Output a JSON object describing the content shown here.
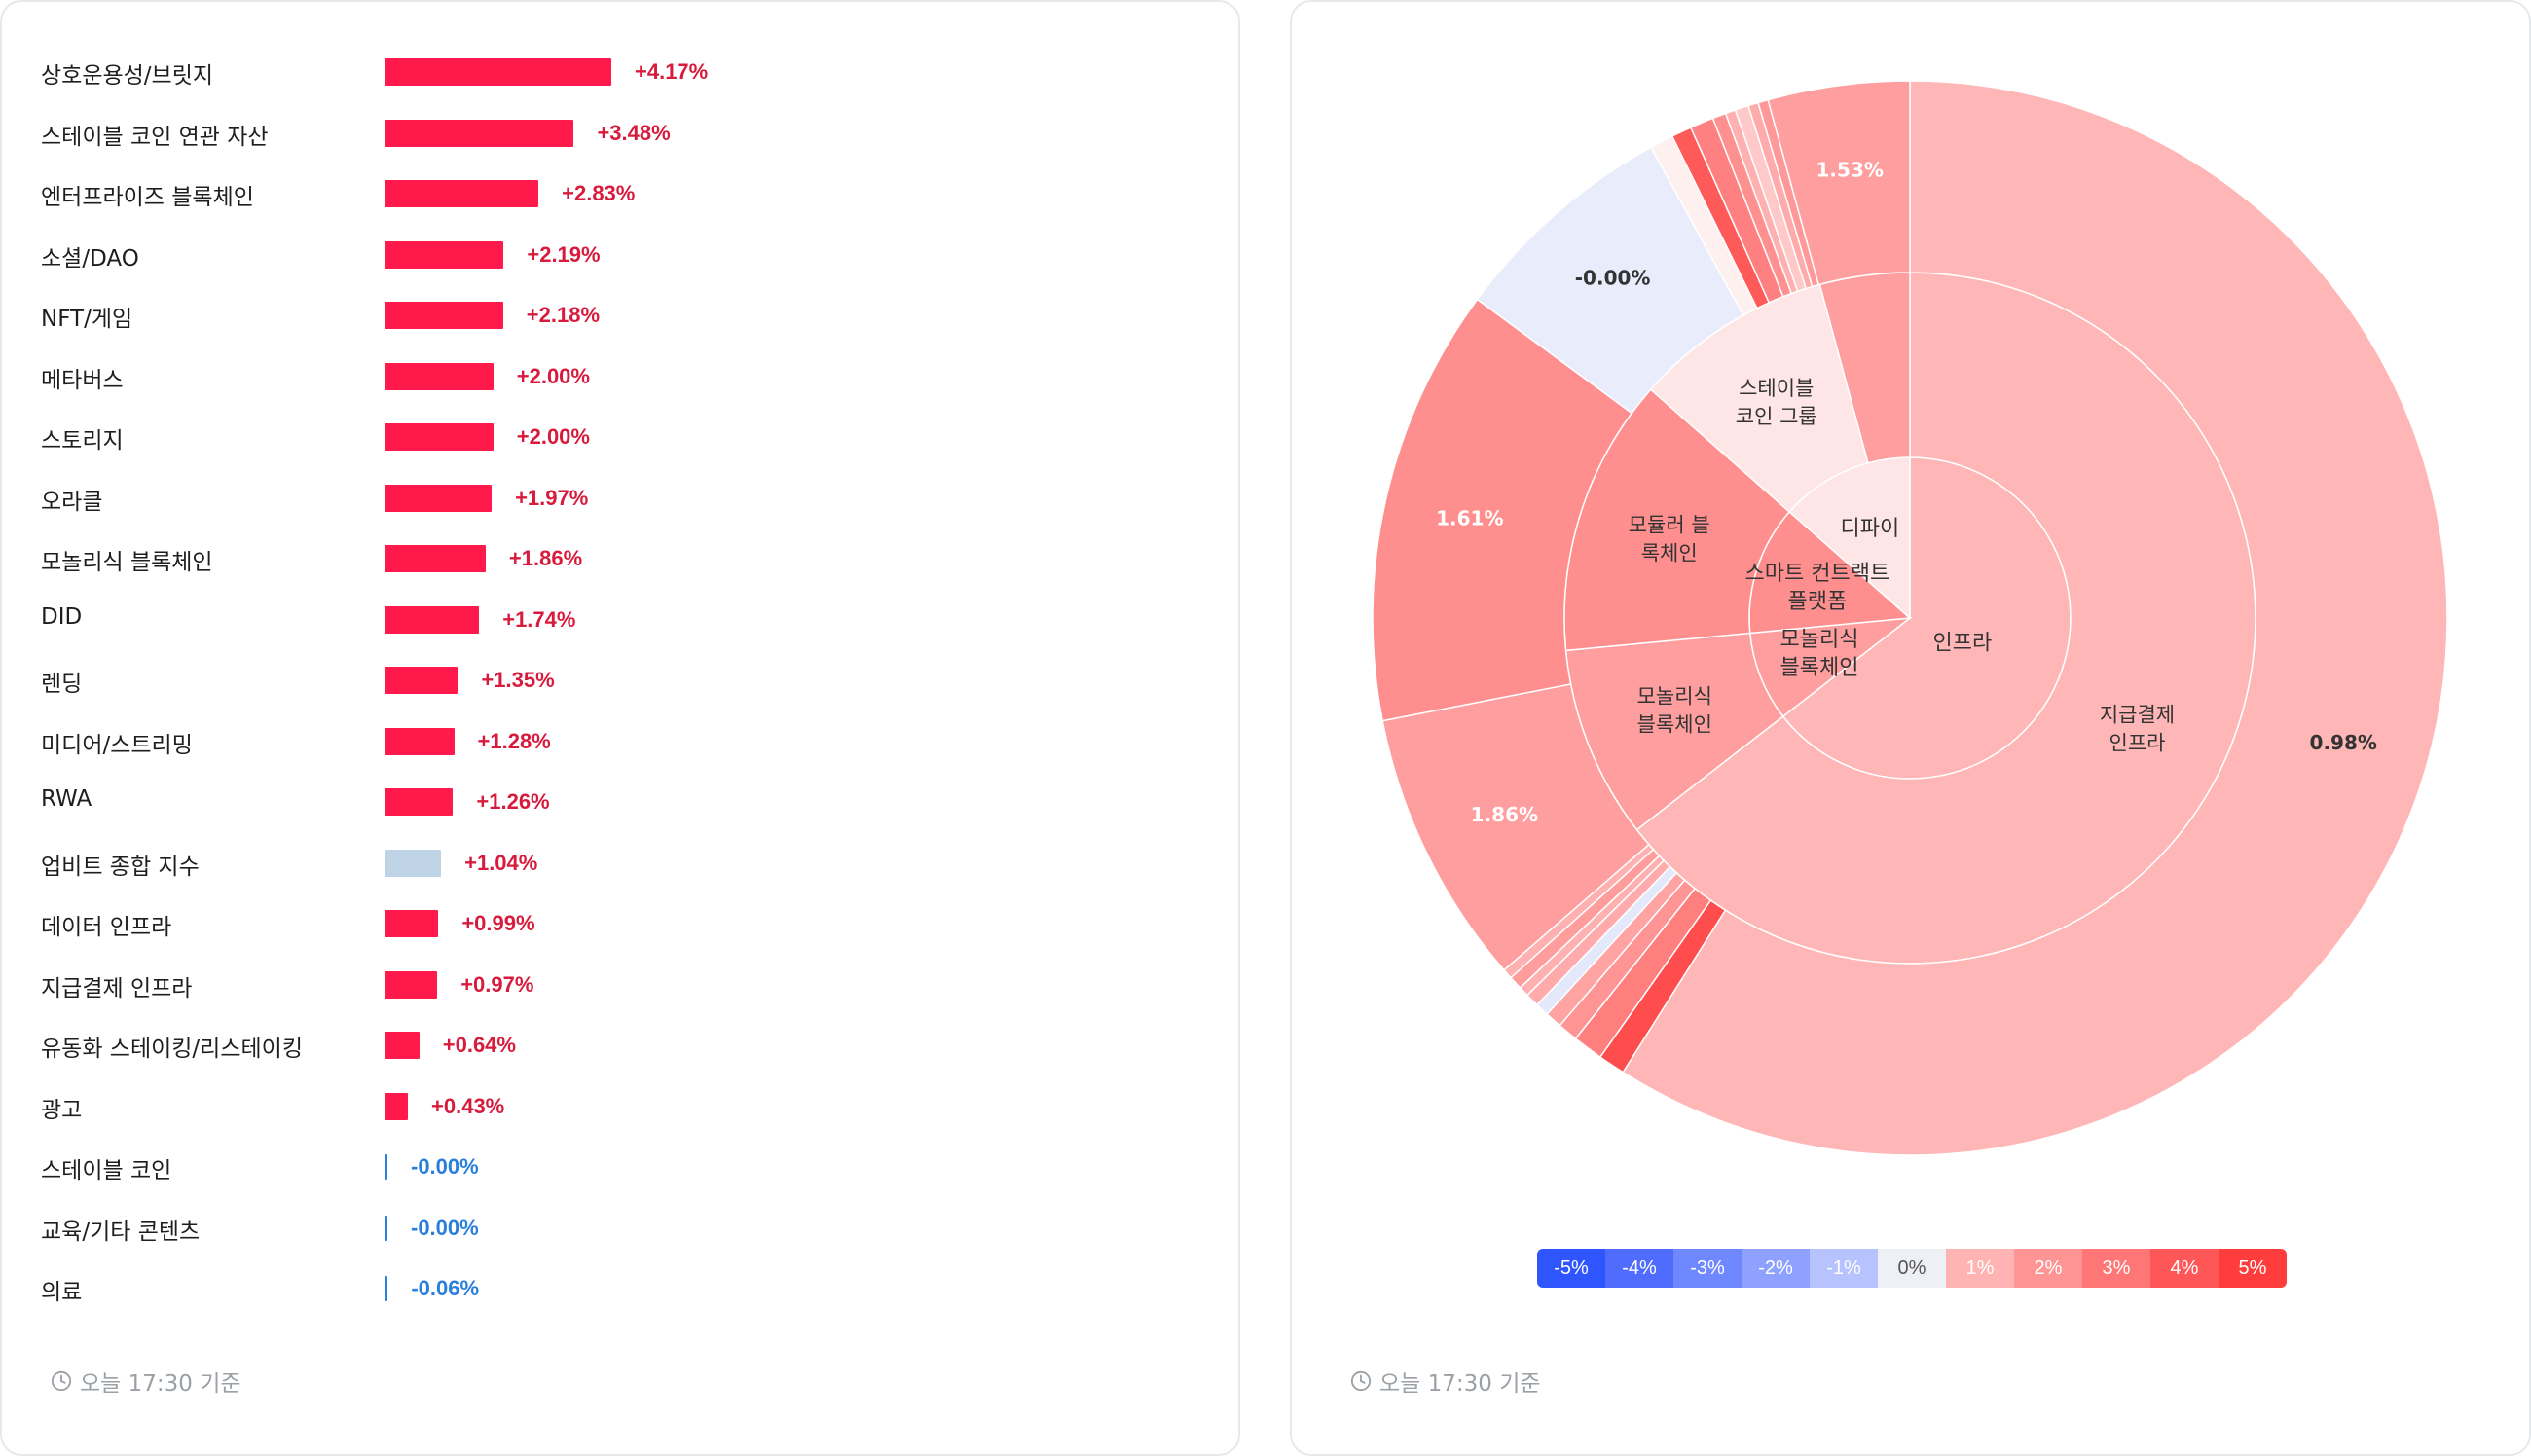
{
  "left": {
    "timestamp": "오늘 17:30 기준",
    "chart_data": {
      "type": "bar",
      "orientation": "horizontal",
      "categories": [
        "상호운용성/브릿지",
        "스테이블 코인 연관 자산",
        "엔터프라이즈 블록체인",
        "소셜/DAO",
        "NFT/게임",
        "메타버스",
        "스토리지",
        "오라클",
        "모놀리식 블록체인",
        "DID",
        "렌딩",
        "미디어/스트리밍",
        "RWA",
        "업비트 종합 지수",
        "데이터 인프라",
        "지급결제 인프라",
        "유동화 스테이킹/리스테이킹",
        "광고",
        "스테이블 코인",
        "교육/기타 콘텐츠",
        "의료"
      ],
      "values": [
        4.17,
        3.48,
        2.83,
        2.19,
        2.18,
        2.0,
        2.0,
        1.97,
        1.86,
        1.74,
        1.35,
        1.28,
        1.26,
        1.04,
        0.99,
        0.97,
        0.64,
        0.43,
        -0.0,
        -0.0,
        -0.06
      ],
      "value_labels": [
        "+4.17%",
        "+3.48%",
        "+2.83%",
        "+2.19%",
        "+2.18%",
        "+2.00%",
        "+2.00%",
        "+1.97%",
        "+1.86%",
        "+1.74%",
        "+1.35%",
        "+1.28%",
        "+1.26%",
        "+1.04%",
        "+0.99%",
        "+0.97%",
        "+0.64%",
        "+0.43%",
        "-0.00%",
        "-0.00%",
        "-0.06%"
      ],
      "highlight_category": "업비트 종합 지수",
      "colors": {
        "positive": "#ff1a4b",
        "negative": "#2a7fdb",
        "index": "#bfd3e6",
        "positive_text": "#d81b3c",
        "negative_text": "#2a7fdb"
      }
    }
  },
  "right": {
    "timestamp": "오늘 17:30 기준",
    "chart_data": {
      "type": "sunburst",
      "start_angle_deg": 0,
      "direction": "clockwise",
      "inner_ring": [
        {
          "label": "인프라",
          "weight": 0.645,
          "change": 0.98,
          "color": "#ffb6b6"
        },
        {
          "label": "모놀리식\n블록체인",
          "weight": 0.09,
          "change": 1.86,
          "color": "#ff9e9e"
        },
        {
          "label": "스마트 컨트랙트\n플랫폼",
          "weight": 0.13,
          "change": 1.61,
          "color": "#ff8f8f"
        },
        {
          "label": "디파이",
          "weight": 0.135,
          "change": 0.2,
          "color": "#ffe6e6"
        }
      ],
      "middle_ring": [
        {
          "label": "지급결제\n인프라",
          "weight": 0.645,
          "change": 0.97,
          "color": "#ffb6b6"
        },
        {
          "label": "모놀리식\n블록체인",
          "weight": 0.09,
          "change": 1.86,
          "color": "#ff9e9e"
        },
        {
          "label": "모듈러 블\n록체인",
          "weight": 0.13,
          "change": 1.61,
          "color": "#ff8f8f"
        },
        {
          "label": "스테이블\n코인 그룹",
          "weight": 0.093,
          "change": 0.05,
          "color": "#ffe6e6"
        },
        {
          "label": "",
          "weight": 0.042,
          "change": 1.5,
          "color": "#ff9e9e"
        }
      ],
      "outer_ring": [
        {
          "label": "0.98%",
          "weight": 0.582,
          "change": 0.98,
          "color": "#ffb6b6"
        },
        {
          "label": "",
          "weight": 0.008,
          "change": 3.2,
          "color": "#ff4d4d"
        },
        {
          "label": "",
          "weight": 0.009,
          "change": 2.2,
          "color": "#ff7f7f"
        },
        {
          "label": "",
          "weight": 0.006,
          "change": 1.8,
          "color": "#ff9494"
        },
        {
          "label": "",
          "weight": 0.005,
          "change": 1.5,
          "color": "#ffa3a3"
        },
        {
          "label": "",
          "weight": 0.004,
          "change": -0.3,
          "color": "#e3e9fb"
        },
        {
          "label": "",
          "weight": 0.004,
          "change": 1.4,
          "color": "#ffabab"
        },
        {
          "label": "",
          "weight": 0.003,
          "change": 1.2,
          "color": "#ffb1b1"
        },
        {
          "label": "",
          "weight": 0.004,
          "change": 1.6,
          "color": "#ff9c9c"
        },
        {
          "label": "",
          "weight": 0.003,
          "change": 1.3,
          "color": "#ffb0b0"
        },
        {
          "label": "1.86%",
          "weight": 0.082,
          "change": 1.86,
          "color": "#ff9e9e"
        },
        {
          "label": "1.61%",
          "weight": 0.13,
          "change": 1.61,
          "color": "#ff8f8f"
        },
        {
          "label": "-0.00%",
          "weight": 0.068,
          "change": -0.0,
          "color": "#e8ecfb"
        },
        {
          "label": "",
          "weight": 0.007,
          "change": 0.3,
          "color": "#fff0f0"
        },
        {
          "label": "",
          "weight": 0.006,
          "change": 3.5,
          "color": "#ff5a5a"
        },
        {
          "label": "",
          "weight": 0.007,
          "change": 2.3,
          "color": "#ff8080"
        },
        {
          "label": "",
          "weight": 0.004,
          "change": 1.9,
          "color": "#ff9090"
        },
        {
          "label": "",
          "weight": 0.003,
          "change": 1.2,
          "color": "#ffb1b1"
        },
        {
          "label": "",
          "weight": 0.004,
          "change": 0.8,
          "color": "#ffc9c9"
        },
        {
          "label": "",
          "weight": 0.003,
          "change": 1.4,
          "color": "#ffabab"
        },
        {
          "label": "",
          "weight": 0.003,
          "change": 1.7,
          "color": "#ff9999"
        },
        {
          "label": "1.53%",
          "weight": 0.042,
          "change": 1.53,
          "color": "#ff9e9e"
        }
      ],
      "legend": {
        "labels": [
          "-5%",
          "-4%",
          "-3%",
          "-2%",
          "-1%",
          "0%",
          "1%",
          "2%",
          "3%",
          "4%",
          "5%"
        ],
        "colors": [
          "#2f55ff",
          "#4f6cff",
          "#6f87ff",
          "#8fa1ff",
          "#b6c3ff",
          "#eef0f5",
          "#ffb3b3",
          "#ff9494",
          "#ff7676",
          "#ff5757",
          "#ff3d3d"
        ],
        "text_colors": [
          "#ffffff",
          "#ffffff",
          "#ffffff",
          "#ffffff",
          "#ffffff",
          "#555555",
          "#ffffff",
          "#ffffff",
          "#ffffff",
          "#ffffff",
          "#ffffff"
        ]
      }
    }
  }
}
